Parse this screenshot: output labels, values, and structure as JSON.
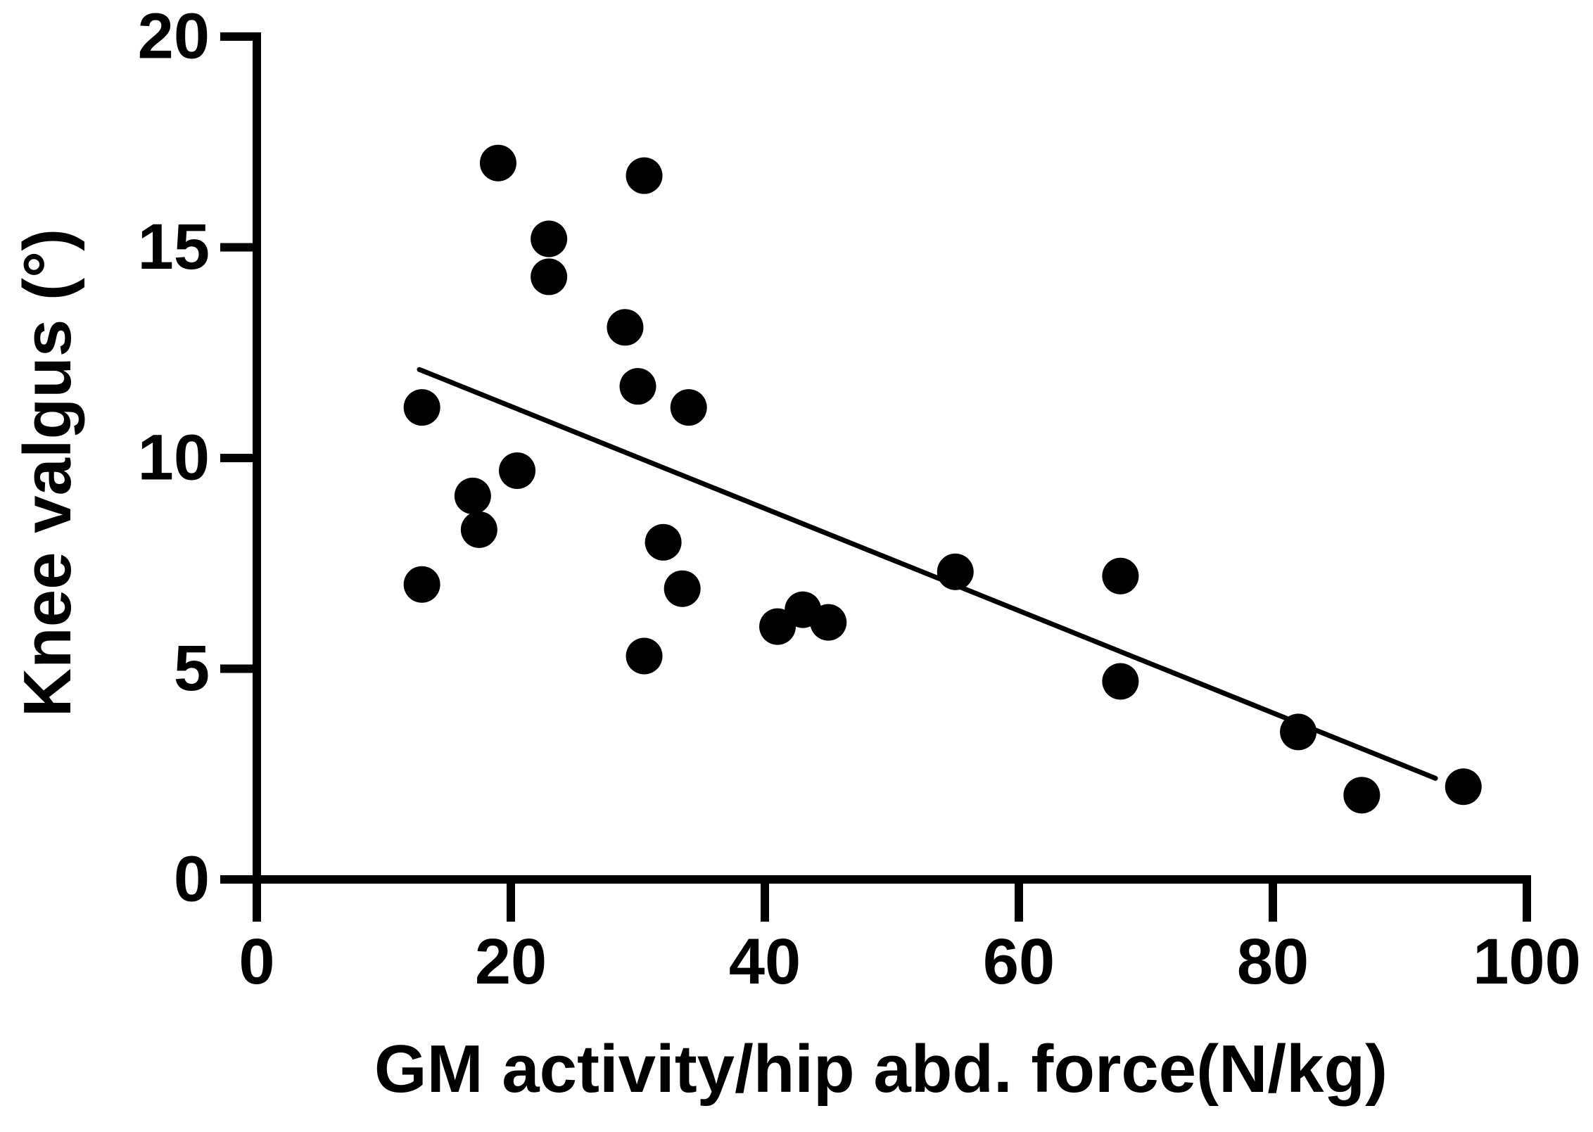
{
  "style": {
    "background": "#ffffff",
    "ink": "#000000"
  },
  "chart_data": {
    "type": "scatter",
    "title": "",
    "xlabel": "GM activity/hip abd. force(N/kg)",
    "ylabel": "Knee valgus (°)",
    "xlim": [
      0,
      100
    ],
    "ylim": [
      0,
      20
    ],
    "x_ticks": [
      0,
      20,
      40,
      60,
      80,
      100
    ],
    "y_ticks": [
      0,
      5,
      10,
      15,
      20
    ],
    "grid": false,
    "legend": "none",
    "marker": {
      "shape": "circle",
      "color": "#000000",
      "radius_px": 26
    },
    "points": [
      {
        "x": 13,
        "y": 11.2
      },
      {
        "x": 13,
        "y": 7.0
      },
      {
        "x": 17,
        "y": 9.1
      },
      {
        "x": 17.5,
        "y": 8.3
      },
      {
        "x": 19,
        "y": 17.0
      },
      {
        "x": 20.5,
        "y": 9.7
      },
      {
        "x": 23,
        "y": 15.2
      },
      {
        "x": 23,
        "y": 14.3
      },
      {
        "x": 29,
        "y": 13.1
      },
      {
        "x": 30,
        "y": 11.7
      },
      {
        "x": 30.5,
        "y": 16.7
      },
      {
        "x": 30.5,
        "y": 5.3
      },
      {
        "x": 32,
        "y": 8.0
      },
      {
        "x": 33.5,
        "y": 6.9
      },
      {
        "x": 34,
        "y": 11.2
      },
      {
        "x": 41,
        "y": 6.0
      },
      {
        "x": 43,
        "y": 6.4
      },
      {
        "x": 45,
        "y": 6.1
      },
      {
        "x": 55,
        "y": 7.3
      },
      {
        "x": 68,
        "y": 7.2
      },
      {
        "x": 68,
        "y": 4.7
      },
      {
        "x": 82,
        "y": 3.5
      },
      {
        "x": 87,
        "y": 2.0
      },
      {
        "x": 95,
        "y": 2.2
      }
    ],
    "trendline": {
      "x1": 12.8,
      "y1": 12.1,
      "x2": 92.8,
      "y2": 2.4
    }
  }
}
